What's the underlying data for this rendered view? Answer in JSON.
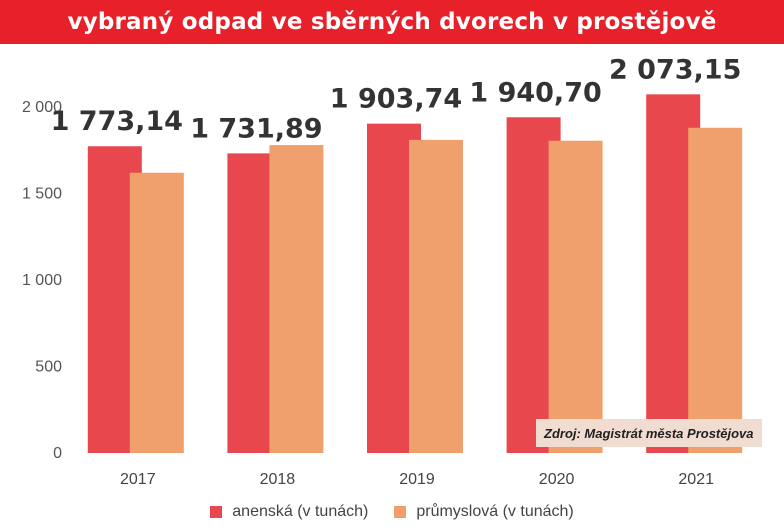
{
  "title": "vybraný odpad ve sběrných dvorech v prostějově",
  "source": "Zdroj: Magistrát města Prostějova",
  "chart_data": {
    "type": "bar",
    "categories": [
      "2017",
      "2018",
      "2019",
      "2020",
      "2021"
    ],
    "series": [
      {
        "name": "anenská (v tunách)",
        "color": "#e8474e",
        "values": [
          1773.14,
          1731.89,
          1903.74,
          1940.7,
          2073.15
        ]
      },
      {
        "name": "průmyslová (v tunách)",
        "color": "#f0a06c",
        "values": [
          1620,
          1780,
          1810,
          1805,
          1880
        ]
      }
    ],
    "data_labels": [
      "1 773,14",
      "1 731,89",
      "1 903,74",
      "1 940,70",
      "2 073,15"
    ],
    "yticks": [
      0,
      500,
      1000,
      1500,
      2000
    ],
    "ytick_labels": [
      "0",
      "500",
      "1 000",
      "1 500",
      "2 000"
    ],
    "ylim": [
      0,
      2200
    ],
    "grid": false,
    "legend_position": "bottom"
  }
}
